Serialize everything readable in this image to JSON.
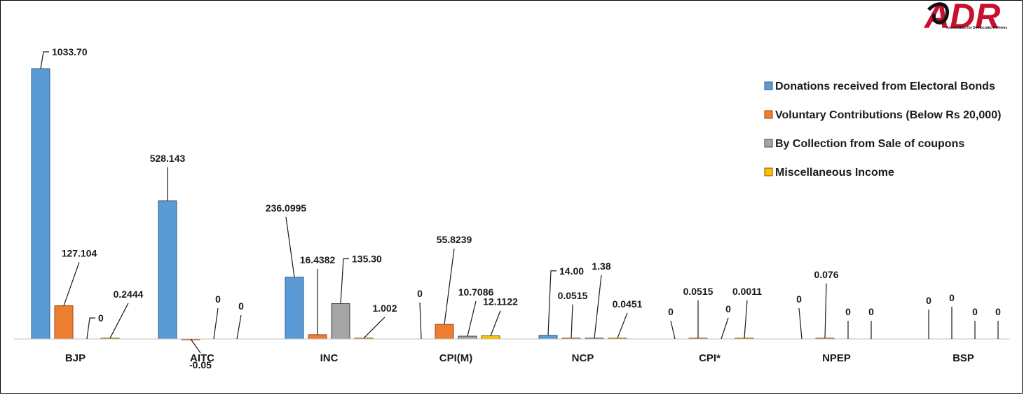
{
  "logo": {
    "text": "ADR",
    "subtitle": "Association for Democratic Reforms",
    "color": "#c8102e"
  },
  "chart_data": {
    "type": "bar",
    "categories": [
      "BJP",
      "AITC",
      "INC",
      "CPI(M)",
      "NCP",
      "CPI*",
      "NPEP",
      "BSP"
    ],
    "series": [
      {
        "name": "Donations received from Electoral Bonds",
        "color": "#5b9bd5",
        "stroke": "#2f5c8a",
        "values": [
          1033.7,
          528.143,
          236.0995,
          0,
          14.0,
          0,
          0,
          0
        ],
        "labels": [
          "1033.70",
          "528.143",
          "236.0995",
          "0",
          "14.00",
          "0",
          "0",
          "0"
        ]
      },
      {
        "name": "Voluntary Contributions (Below Rs 20,000)",
        "color": "#ed7d31",
        "stroke": "#9b4a12",
        "values": [
          127.104,
          -0.05,
          16.4382,
          55.8239,
          0.0515,
          0.0515,
          0.076,
          0
        ],
        "labels": [
          "127.104",
          "-0.05",
          "16.4382",
          "55.8239",
          "0.0515",
          "0.0515",
          "0.076",
          "0"
        ]
      },
      {
        "name": "By Collection from Sale of coupons",
        "color": "#a5a5a5",
        "stroke": "#444444",
        "values": [
          0,
          0,
          135.3,
          10.7086,
          1.38,
          0,
          0,
          0
        ],
        "labels": [
          "0",
          "0",
          "135.30",
          "10.7086",
          "1.38",
          "0",
          "0",
          "0"
        ]
      },
      {
        "name": "Miscellaneous Income",
        "color": "#ffc000",
        "stroke": "#7a5c00",
        "values": [
          0.2444,
          0,
          1.002,
          12.1122,
          0.0451,
          0.0011,
          0,
          0
        ],
        "labels": [
          "0.2444",
          "0",
          "1.002",
          "12.1122",
          "0.0451",
          "0.0011",
          "0",
          "0"
        ]
      }
    ],
    "negative_label_color": "#c00000",
    "ylim": [
      -0.05,
      1033.7
    ],
    "grid": false,
    "legend_position": "top-right"
  }
}
